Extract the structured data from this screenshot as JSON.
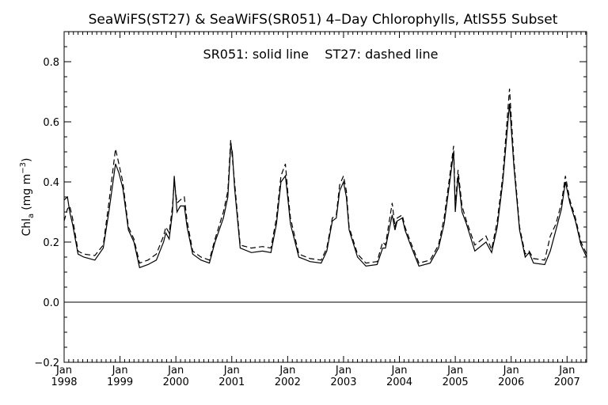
{
  "chart_data": {
    "type": "line",
    "title": "SeaWiFS(ST27) & SeaWiFS(SR051) 4–Day Chlorophylls, AtlS55 Subset",
    "annotation": "SR051: solid line    ST27: dashed line",
    "ylabel_main": "Chl",
    "ylabel_sub": "a",
    "ylabel_units": "(mg m",
    "ylabel_exp": "−3",
    "ylabel_close": ")",
    "xlim": [
      1998.0,
      2007.35
    ],
    "ylim": [
      -0.2,
      0.9
    ],
    "grid": false,
    "y_ticks": [
      {
        "v": -0.2,
        "label": "−0.2"
      },
      {
        "v": 0.0,
        "label": "0.0"
      },
      {
        "v": 0.2,
        "label": "0.2"
      },
      {
        "v": 0.4,
        "label": "0.4"
      },
      {
        "v": 0.6,
        "label": "0.6"
      },
      {
        "v": 0.8,
        "label": "0.8"
      }
    ],
    "x_ticks": [
      {
        "v": 1998,
        "month": "Jan",
        "year": "1998"
      },
      {
        "v": 1999,
        "month": "Jan",
        "year": "1999"
      },
      {
        "v": 2000,
        "month": "Jan",
        "year": "2000"
      },
      {
        "v": 2001,
        "month": "Jan",
        "year": "2001"
      },
      {
        "v": 2002,
        "month": "Jan",
        "year": "2002"
      },
      {
        "v": 2003,
        "month": "Jan",
        "year": "2003"
      },
      {
        "v": 2004,
        "month": "Jan",
        "year": "2004"
      },
      {
        "v": 2005,
        "month": "Jan",
        "year": "2005"
      },
      {
        "v": 2006,
        "month": "Jan",
        "year": "2006"
      },
      {
        "v": 2007,
        "month": "Jan",
        "year": "2007"
      }
    ],
    "zero_line": 0.0,
    "series": [
      {
        "name": "SR051",
        "style": "solid",
        "color": "#000000",
        "points": [
          [
            1998.0,
            0.34
          ],
          [
            1998.06,
            0.35
          ],
          [
            1998.1,
            0.3
          ],
          [
            1998.15,
            0.26
          ],
          [
            1998.25,
            0.16
          ],
          [
            1998.35,
            0.15
          ],
          [
            1998.55,
            0.14
          ],
          [
            1998.7,
            0.18
          ],
          [
            1998.8,
            0.3
          ],
          [
            1998.92,
            0.46
          ],
          [
            1998.98,
            0.43
          ],
          [
            1999.05,
            0.38
          ],
          [
            1999.15,
            0.24
          ],
          [
            1999.25,
            0.2
          ],
          [
            1999.35,
            0.115
          ],
          [
            1999.5,
            0.125
          ],
          [
            1999.65,
            0.14
          ],
          [
            1999.78,
            0.2
          ],
          [
            1999.82,
            0.23
          ],
          [
            1999.88,
            0.21
          ],
          [
            1999.94,
            0.3
          ],
          [
            1999.97,
            0.42
          ],
          [
            2000.02,
            0.3
          ],
          [
            2000.08,
            0.32
          ],
          [
            2000.15,
            0.32
          ],
          [
            2000.2,
            0.25
          ],
          [
            2000.3,
            0.16
          ],
          [
            2000.45,
            0.14
          ],
          [
            2000.6,
            0.13
          ],
          [
            2000.7,
            0.2
          ],
          [
            2000.85,
            0.28
          ],
          [
            2000.93,
            0.35
          ],
          [
            2000.98,
            0.52
          ],
          [
            2001.01,
            0.5
          ],
          [
            2001.05,
            0.38
          ],
          [
            2001.15,
            0.18
          ],
          [
            2001.35,
            0.165
          ],
          [
            2001.55,
            0.17
          ],
          [
            2001.7,
            0.165
          ],
          [
            2001.8,
            0.26
          ],
          [
            2001.88,
            0.4
          ],
          [
            2001.96,
            0.42
          ],
          [
            2002.0,
            0.35
          ],
          [
            2002.05,
            0.26
          ],
          [
            2002.2,
            0.15
          ],
          [
            2002.4,
            0.135
          ],
          [
            2002.6,
            0.13
          ],
          [
            2002.7,
            0.17
          ],
          [
            2002.8,
            0.27
          ],
          [
            2002.87,
            0.28
          ],
          [
            2002.93,
            0.37
          ],
          [
            2003.0,
            0.4
          ],
          [
            2003.05,
            0.35
          ],
          [
            2003.1,
            0.24
          ],
          [
            2003.25,
            0.15
          ],
          [
            2003.4,
            0.12
          ],
          [
            2003.6,
            0.125
          ],
          [
            2003.7,
            0.18
          ],
          [
            2003.75,
            0.18
          ],
          [
            2003.87,
            0.29
          ],
          [
            2003.92,
            0.24
          ],
          [
            2003.96,
            0.27
          ],
          [
            2004.05,
            0.28
          ],
          [
            2004.1,
            0.24
          ],
          [
            2004.2,
            0.19
          ],
          [
            2004.35,
            0.12
          ],
          [
            2004.55,
            0.13
          ],
          [
            2004.7,
            0.18
          ],
          [
            2004.8,
            0.26
          ],
          [
            2004.9,
            0.4
          ],
          [
            2004.97,
            0.5
          ],
          [
            2005.0,
            0.3
          ],
          [
            2005.05,
            0.42
          ],
          [
            2005.12,
            0.3
          ],
          [
            2005.2,
            0.26
          ],
          [
            2005.35,
            0.17
          ],
          [
            2005.55,
            0.2
          ],
          [
            2005.65,
            0.165
          ],
          [
            2005.75,
            0.25
          ],
          [
            2005.85,
            0.4
          ],
          [
            2005.97,
            0.66
          ],
          [
            2006.05,
            0.45
          ],
          [
            2006.15,
            0.24
          ],
          [
            2006.25,
            0.15
          ],
          [
            2006.32,
            0.165
          ],
          [
            2006.4,
            0.13
          ],
          [
            2006.6,
            0.125
          ],
          [
            2006.7,
            0.17
          ],
          [
            2006.8,
            0.24
          ],
          [
            2006.9,
            0.31
          ],
          [
            2006.97,
            0.4
          ],
          [
            2007.05,
            0.33
          ],
          [
            2007.15,
            0.27
          ],
          [
            2007.25,
            0.19
          ],
          [
            2007.35,
            0.15
          ]
        ]
      },
      {
        "name": "ST27",
        "style": "dashed",
        "color": "#000000",
        "points": [
          [
            1998.0,
            0.27
          ],
          [
            1998.06,
            0.31
          ],
          [
            1998.1,
            0.32
          ],
          [
            1998.15,
            0.28
          ],
          [
            1998.25,
            0.17
          ],
          [
            1998.35,
            0.16
          ],
          [
            1998.55,
            0.155
          ],
          [
            1998.7,
            0.19
          ],
          [
            1998.8,
            0.33
          ],
          [
            1998.92,
            0.51
          ],
          [
            1998.98,
            0.46
          ],
          [
            1999.05,
            0.4
          ],
          [
            1999.15,
            0.25
          ],
          [
            1999.25,
            0.21
          ],
          [
            1999.35,
            0.13
          ],
          [
            1999.5,
            0.14
          ],
          [
            1999.65,
            0.16
          ],
          [
            1999.78,
            0.22
          ],
          [
            1999.82,
            0.25
          ],
          [
            1999.88,
            0.23
          ],
          [
            1999.94,
            0.32
          ],
          [
            1999.97,
            0.4
          ],
          [
            2000.02,
            0.33
          ],
          [
            2000.08,
            0.34
          ],
          [
            2000.15,
            0.35
          ],
          [
            2000.2,
            0.27
          ],
          [
            2000.3,
            0.17
          ],
          [
            2000.45,
            0.15
          ],
          [
            2000.6,
            0.14
          ],
          [
            2000.7,
            0.21
          ],
          [
            2000.85,
            0.3
          ],
          [
            2000.93,
            0.37
          ],
          [
            2000.98,
            0.54
          ],
          [
            2001.01,
            0.48
          ],
          [
            2001.05,
            0.4
          ],
          [
            2001.15,
            0.19
          ],
          [
            2001.35,
            0.18
          ],
          [
            2001.55,
            0.185
          ],
          [
            2001.7,
            0.18
          ],
          [
            2001.8,
            0.28
          ],
          [
            2001.88,
            0.42
          ],
          [
            2001.96,
            0.46
          ],
          [
            2002.0,
            0.37
          ],
          [
            2002.05,
            0.28
          ],
          [
            2002.2,
            0.16
          ],
          [
            2002.4,
            0.145
          ],
          [
            2002.6,
            0.14
          ],
          [
            2002.7,
            0.18
          ],
          [
            2002.8,
            0.28
          ],
          [
            2002.87,
            0.29
          ],
          [
            2002.93,
            0.39
          ],
          [
            2003.0,
            0.42
          ],
          [
            2003.05,
            0.37
          ],
          [
            2003.1,
            0.25
          ],
          [
            2003.25,
            0.16
          ],
          [
            2003.4,
            0.13
          ],
          [
            2003.6,
            0.135
          ],
          [
            2003.7,
            0.2
          ],
          [
            2003.75,
            0.19
          ],
          [
            2003.87,
            0.33
          ],
          [
            2003.92,
            0.25
          ],
          [
            2003.96,
            0.28
          ],
          [
            2004.05,
            0.29
          ],
          [
            2004.1,
            0.25
          ],
          [
            2004.2,
            0.2
          ],
          [
            2004.35,
            0.13
          ],
          [
            2004.55,
            0.14
          ],
          [
            2004.7,
            0.19
          ],
          [
            2004.8,
            0.28
          ],
          [
            2004.9,
            0.42
          ],
          [
            2004.97,
            0.52
          ],
          [
            2005.0,
            0.32
          ],
          [
            2005.05,
            0.44
          ],
          [
            2005.12,
            0.32
          ],
          [
            2005.2,
            0.27
          ],
          [
            2005.35,
            0.19
          ],
          [
            2005.55,
            0.22
          ],
          [
            2005.65,
            0.175
          ],
          [
            2005.75,
            0.27
          ],
          [
            2005.85,
            0.42
          ],
          [
            2005.97,
            0.71
          ],
          [
            2006.05,
            0.47
          ],
          [
            2006.15,
            0.25
          ],
          [
            2006.25,
            0.16
          ],
          [
            2006.32,
            0.17
          ],
          [
            2006.4,
            0.145
          ],
          [
            2006.6,
            0.14
          ],
          [
            2006.7,
            0.22
          ],
          [
            2006.8,
            0.26
          ],
          [
            2006.9,
            0.33
          ],
          [
            2006.97,
            0.42
          ],
          [
            2007.05,
            0.34
          ],
          [
            2007.15,
            0.28
          ],
          [
            2007.25,
            0.2
          ],
          [
            2007.35,
            0.16
          ]
        ]
      }
    ]
  }
}
